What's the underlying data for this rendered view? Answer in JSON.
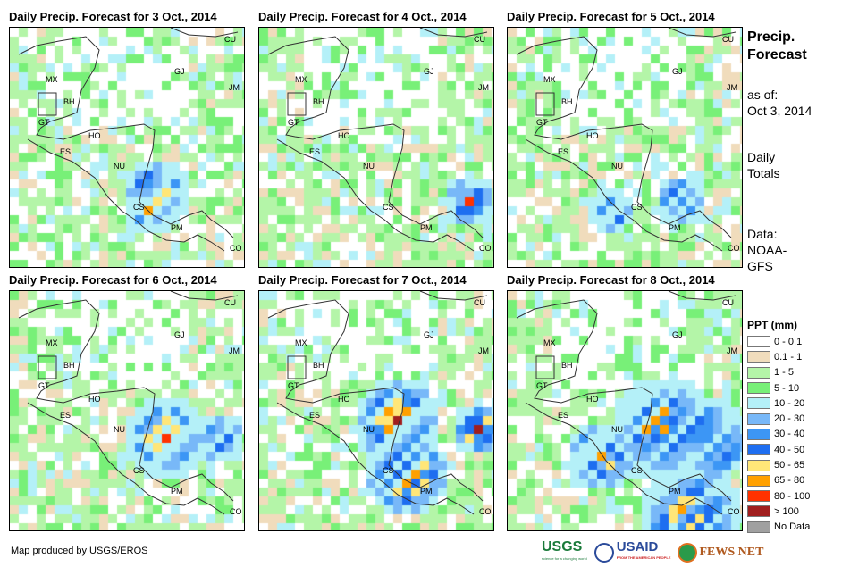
{
  "panels": [
    {
      "title": "Daily Precip. Forecast for 3 Oct., 2014"
    },
    {
      "title": "Daily Precip. Forecast for 4 Oct., 2014"
    },
    {
      "title": "Daily Precip. Forecast for 5 Oct., 2014"
    },
    {
      "title": "Daily Precip. Forecast for 6 Oct., 2014"
    },
    {
      "title": "Daily Precip. Forecast for 7 Oct., 2014"
    },
    {
      "title": "Daily Precip. Forecast for 8 Oct., 2014"
    }
  ],
  "country_labels": [
    "MX",
    "BH",
    "GT",
    "HO",
    "ES",
    "NU",
    "CS",
    "PM",
    "GJ",
    "CU",
    "JM",
    "CO"
  ],
  "side": {
    "title1": "Precip.",
    "title2": "Forecast",
    "asof1": "as of:",
    "asof2": "Oct 3, 2014",
    "daily1": "Daily",
    "daily2": "Totals",
    "data1": "Data:",
    "data2": "NOAA-",
    "data3": "GFS"
  },
  "legend": {
    "title": "PPT (mm)",
    "items": [
      {
        "label": "0 - 0.1",
        "color": "#ffffff"
      },
      {
        "label": "0.1 - 1",
        "color": "#f0dcbc"
      },
      {
        "label": "1 - 5",
        "color": "#b4f5a8"
      },
      {
        "label": "5 - 10",
        "color": "#78f078"
      },
      {
        "label": "10 - 20",
        "color": "#b4f0f8"
      },
      {
        "label": "20 - 30",
        "color": "#78b8f8"
      },
      {
        "label": "30 - 40",
        "color": "#3c96f5"
      },
      {
        "label": "40 - 50",
        "color": "#1e6ef0"
      },
      {
        "label": "50 - 65",
        "color": "#ffe678"
      },
      {
        "label": "65 - 80",
        "color": "#ffa000"
      },
      {
        "label": "80 - 100",
        "color": "#ff3200"
      },
      {
        "label": "> 100",
        "color": "#a01e1e"
      },
      {
        "label": "No Data",
        "color": "#a0a0a0"
      }
    ]
  },
  "credit": "Map produced by USGS/EROS",
  "logos": {
    "usgs": "USGS",
    "usgs_tag": "science for a changing world",
    "usaid": "USAID",
    "usaid_tag": "FROM THE AMERICAN PEOPLE",
    "fews": "FEWS NET"
  }
}
